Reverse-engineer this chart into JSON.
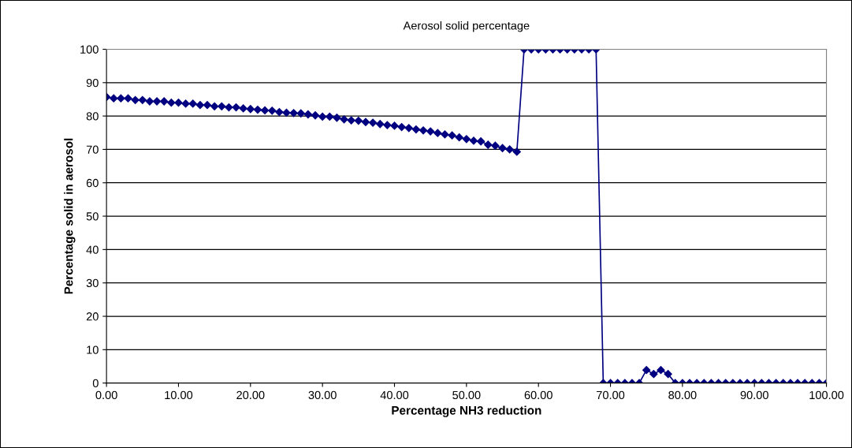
{
  "chart_data": {
    "type": "line",
    "title": "Aerosol solid percentage",
    "xlabel": "Percentage NH3 reduction",
    "ylabel": "Percentage solid in aerosol",
    "x": [
      0,
      1,
      2,
      3,
      4,
      5,
      6,
      7,
      8,
      9,
      10,
      11,
      12,
      13,
      14,
      15,
      16,
      17,
      18,
      19,
      20,
      21,
      22,
      23,
      24,
      25,
      26,
      27,
      28,
      29,
      30,
      31,
      32,
      33,
      34,
      35,
      36,
      37,
      38,
      39,
      40,
      41,
      42,
      43,
      44,
      45,
      46,
      47,
      48,
      49,
      50,
      51,
      52,
      53,
      54,
      55,
      56,
      57,
      58,
      59,
      60,
      61,
      62,
      63,
      64,
      65,
      66,
      67,
      68,
      69,
      70,
      71,
      72,
      73,
      74,
      75,
      76,
      77,
      78,
      79,
      80,
      81,
      82,
      83,
      84,
      85,
      86,
      87,
      88,
      89,
      90,
      91,
      92,
      93,
      94,
      95,
      96,
      97,
      98,
      99,
      100
    ],
    "series": [
      {
        "color": "#000080",
        "values": [
          85.7,
          85.3,
          85.3,
          85.3,
          84.8,
          84.8,
          84.4,
          84.4,
          84.4,
          84.0,
          84.0,
          83.7,
          83.7,
          83.3,
          83.3,
          82.9,
          82.9,
          82.6,
          82.6,
          82.3,
          82.1,
          81.9,
          81.7,
          81.6,
          81.2,
          81.0,
          80.9,
          80.8,
          80.5,
          80.2,
          79.8,
          79.8,
          79.5,
          79.0,
          78.7,
          78.6,
          78.2,
          78.0,
          77.6,
          77.3,
          77.1,
          76.7,
          76.4,
          76.0,
          75.7,
          75.4,
          74.9,
          74.5,
          74.2,
          73.6,
          73.1,
          72.6,
          72.4,
          71.4,
          71.1,
          70.4,
          70.0,
          69.3,
          100,
          100,
          100,
          100,
          100,
          100,
          100,
          100,
          100,
          100,
          100,
          0,
          0,
          0,
          0,
          0,
          0,
          3.9,
          2.7,
          3.9,
          2.7,
          0,
          0,
          0,
          0,
          0,
          0,
          0,
          0,
          0,
          0,
          0,
          0,
          0,
          0,
          0,
          0,
          0,
          0,
          0,
          0,
          0,
          0
        ]
      }
    ],
    "xlim": [
      0,
      100
    ],
    "xticks": [
      {
        "value": 0,
        "label": "0.00"
      },
      {
        "value": 10,
        "label": "10.00"
      },
      {
        "value": 20,
        "label": "20.00"
      },
      {
        "value": 30,
        "label": "30.00"
      },
      {
        "value": 40,
        "label": "40.00"
      },
      {
        "value": 50,
        "label": "50.00"
      },
      {
        "value": 60,
        "label": "60.00"
      },
      {
        "value": 70,
        "label": "70.00"
      },
      {
        "value": 80,
        "label": "80.00"
      },
      {
        "value": 90,
        "label": "90.00"
      },
      {
        "value": 100,
        "label": "100.00"
      }
    ],
    "ylim": [
      0,
      100
    ],
    "yticks": [
      0,
      10,
      20,
      30,
      40,
      50,
      60,
      70,
      80,
      90,
      100
    ],
    "grid": "y",
    "marker": "diamond",
    "line_style": "solid",
    "legend": false
  }
}
